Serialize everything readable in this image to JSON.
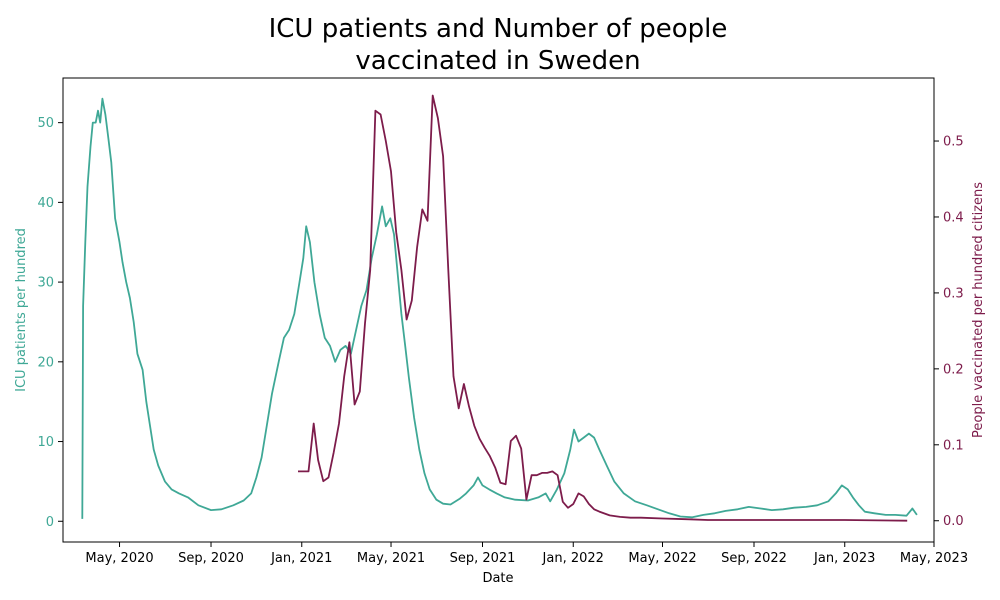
{
  "chart_data": {
    "type": "line",
    "title": [
      "ICU patients and Number of people",
      "vaccinated in Sweden"
    ],
    "xlabel": "Date",
    "x_range": [
      "2020-02-15",
      "2023-05-01"
    ],
    "x_ticks": [
      {
        "date": "2020-05-01",
        "label": "May, 2020"
      },
      {
        "date": "2020-09-01",
        "label": "Sep, 2020"
      },
      {
        "date": "2021-01-01",
        "label": "Jan, 2021"
      },
      {
        "date": "2021-05-01",
        "label": "May, 2021"
      },
      {
        "date": "2021-09-01",
        "label": "Sep, 2021"
      },
      {
        "date": "2022-01-01",
        "label": "Jan, 2022"
      },
      {
        "date": "2022-05-01",
        "label": "May, 2022"
      },
      {
        "date": "2022-09-01",
        "label": "Sep, 2022"
      },
      {
        "date": "2023-01-01",
        "label": "Jan, 2023"
      },
      {
        "date": "2023-05-01",
        "label": "May, 2023"
      }
    ],
    "left_axis": {
      "label": "ICU patients per hundred",
      "color": "#3fa896",
      "ylim": [
        -2.6,
        55.6
      ],
      "ticks": [
        0,
        10,
        20,
        30,
        40,
        50
      ]
    },
    "right_axis": {
      "label": "People vaccinated per hundred citizens",
      "color": "#7d1c4b",
      "ylim": [
        -0.028,
        0.583
      ],
      "ticks": [
        0.0,
        0.1,
        0.2,
        0.3,
        0.4,
        0.5
      ]
    },
    "series": [
      {
        "axis": "left",
        "color": "#3fa896",
        "points": [
          [
            "2020-03-12",
            0.3
          ],
          [
            "2020-03-13",
            27
          ],
          [
            "2020-03-16",
            35
          ],
          [
            "2020-03-19",
            42
          ],
          [
            "2020-03-23",
            47
          ],
          [
            "2020-03-26",
            50
          ],
          [
            "2020-03-30",
            50
          ],
          [
            "2020-04-02",
            51.5
          ],
          [
            "2020-04-05",
            50
          ],
          [
            "2020-04-08",
            53
          ],
          [
            "2020-04-12",
            51
          ],
          [
            "2020-04-16",
            48
          ],
          [
            "2020-04-20",
            45
          ],
          [
            "2020-04-25",
            38
          ],
          [
            "2020-05-01",
            35
          ],
          [
            "2020-05-05",
            32.5
          ],
          [
            "2020-05-10",
            30
          ],
          [
            "2020-05-15",
            28
          ],
          [
            "2020-05-20",
            25
          ],
          [
            "2020-05-25",
            21
          ],
          [
            "2020-06-01",
            19
          ],
          [
            "2020-06-06",
            15
          ],
          [
            "2020-06-11",
            12
          ],
          [
            "2020-06-16",
            9
          ],
          [
            "2020-06-22",
            7
          ],
          [
            "2020-07-01",
            5
          ],
          [
            "2020-07-10",
            4
          ],
          [
            "2020-07-20",
            3.5
          ],
          [
            "2020-08-01",
            3
          ],
          [
            "2020-08-15",
            2
          ],
          [
            "2020-09-01",
            1.4
          ],
          [
            "2020-09-15",
            1.5
          ],
          [
            "2020-10-01",
            2
          ],
          [
            "2020-10-15",
            2.6
          ],
          [
            "2020-10-25",
            3.5
          ],
          [
            "2020-11-01",
            5.5
          ],
          [
            "2020-11-08",
            8
          ],
          [
            "2020-11-15",
            12
          ],
          [
            "2020-11-22",
            16
          ],
          [
            "2020-12-01",
            20
          ],
          [
            "2020-12-08",
            23
          ],
          [
            "2020-12-15",
            24
          ],
          [
            "2020-12-22",
            26
          ],
          [
            "2020-12-29",
            30
          ],
          [
            "2021-01-03",
            33
          ],
          [
            "2021-01-07",
            37
          ],
          [
            "2021-01-12",
            35
          ],
          [
            "2021-01-18",
            30
          ],
          [
            "2021-01-25",
            26
          ],
          [
            "2021-02-01",
            23
          ],
          [
            "2021-02-08",
            22
          ],
          [
            "2021-02-15",
            20
          ],
          [
            "2021-02-22",
            21.5
          ],
          [
            "2021-03-01",
            22
          ],
          [
            "2021-03-08",
            21
          ],
          [
            "2021-03-15",
            24
          ],
          [
            "2021-03-22",
            27
          ],
          [
            "2021-03-29",
            29
          ],
          [
            "2021-04-05",
            33
          ],
          [
            "2021-04-12",
            36
          ],
          [
            "2021-04-19",
            39.5
          ],
          [
            "2021-04-24",
            37
          ],
          [
            "2021-04-30",
            38
          ],
          [
            "2021-05-05",
            36
          ],
          [
            "2021-05-10",
            31
          ],
          [
            "2021-05-15",
            26
          ],
          [
            "2021-05-20",
            22
          ],
          [
            "2021-05-25",
            18
          ],
          [
            "2021-06-01",
            13
          ],
          [
            "2021-06-08",
            9
          ],
          [
            "2021-06-15",
            6
          ],
          [
            "2021-06-22",
            4
          ],
          [
            "2021-07-01",
            2.7
          ],
          [
            "2021-07-10",
            2.2
          ],
          [
            "2021-07-20",
            2.1
          ],
          [
            "2021-08-01",
            2.8
          ],
          [
            "2021-08-10",
            3.5
          ],
          [
            "2021-08-20",
            4.5
          ],
          [
            "2021-08-26",
            5.5
          ],
          [
            "2021-09-01",
            4.5
          ],
          [
            "2021-09-10",
            4
          ],
          [
            "2021-09-20",
            3.5
          ],
          [
            "2021-10-01",
            3
          ],
          [
            "2021-10-15",
            2.7
          ],
          [
            "2021-11-01",
            2.6
          ],
          [
            "2021-11-15",
            3
          ],
          [
            "2021-11-25",
            3.5
          ],
          [
            "2021-12-01",
            2.5
          ],
          [
            "2021-12-10",
            4
          ],
          [
            "2021-12-20",
            6
          ],
          [
            "2021-12-28",
            9
          ],
          [
            "2022-01-02",
            11.5
          ],
          [
            "2022-01-08",
            10
          ],
          [
            "2022-01-15",
            10.5
          ],
          [
            "2022-01-22",
            11
          ],
          [
            "2022-01-29",
            10.5
          ],
          [
            "2022-02-05",
            9
          ],
          [
            "2022-02-15",
            7
          ],
          [
            "2022-02-25",
            5
          ],
          [
            "2022-03-10",
            3.5
          ],
          [
            "2022-03-25",
            2.5
          ],
          [
            "2022-04-10",
            2
          ],
          [
            "2022-04-25",
            1.5
          ],
          [
            "2022-05-10",
            1
          ],
          [
            "2022-05-25",
            0.6
          ],
          [
            "2022-06-10",
            0.5
          ],
          [
            "2022-06-25",
            0.8
          ],
          [
            "2022-07-10",
            1
          ],
          [
            "2022-07-25",
            1.3
          ],
          [
            "2022-08-10",
            1.5
          ],
          [
            "2022-08-25",
            1.8
          ],
          [
            "2022-09-10",
            1.6
          ],
          [
            "2022-09-25",
            1.4
          ],
          [
            "2022-10-10",
            1.5
          ],
          [
            "2022-10-25",
            1.7
          ],
          [
            "2022-11-10",
            1.8
          ],
          [
            "2022-11-25",
            2
          ],
          [
            "2022-12-10",
            2.5
          ],
          [
            "2022-12-20",
            3.5
          ],
          [
            "2022-12-28",
            4.5
          ],
          [
            "2023-01-05",
            4
          ],
          [
            "2023-01-12",
            3
          ],
          [
            "2023-01-20",
            2
          ],
          [
            "2023-01-28",
            1.2
          ],
          [
            "2023-02-10",
            1
          ],
          [
            "2023-02-25",
            0.8
          ],
          [
            "2023-03-10",
            0.8
          ],
          [
            "2023-03-25",
            0.7
          ],
          [
            "2023-04-02",
            1.6
          ],
          [
            "2023-04-08",
            0.8
          ]
        ]
      },
      {
        "axis": "right",
        "color": "#7d1c4b",
        "points": [
          [
            "2020-12-27",
            0.065
          ],
          [
            "2021-01-10",
            0.065
          ],
          [
            "2021-01-17",
            0.128
          ],
          [
            "2021-01-23",
            0.08
          ],
          [
            "2021-01-30",
            0.052
          ],
          [
            "2021-02-06",
            0.057
          ],
          [
            "2021-02-13",
            0.09
          ],
          [
            "2021-02-20",
            0.128
          ],
          [
            "2021-02-27",
            0.19
          ],
          [
            "2021-03-06",
            0.235
          ],
          [
            "2021-03-13",
            0.153
          ],
          [
            "2021-03-20",
            0.17
          ],
          [
            "2021-03-27",
            0.26
          ],
          [
            "2021-04-03",
            0.33
          ],
          [
            "2021-04-10",
            0.54
          ],
          [
            "2021-04-17",
            0.535
          ],
          [
            "2021-04-24",
            0.5
          ],
          [
            "2021-05-01",
            0.46
          ],
          [
            "2021-05-08",
            0.38
          ],
          [
            "2021-05-15",
            0.33
          ],
          [
            "2021-05-22",
            0.265
          ],
          [
            "2021-05-29",
            0.29
          ],
          [
            "2021-06-05",
            0.36
          ],
          [
            "2021-06-12",
            0.41
          ],
          [
            "2021-06-19",
            0.395
          ],
          [
            "2021-06-26",
            0.56
          ],
          [
            "2021-07-03",
            0.53
          ],
          [
            "2021-07-10",
            0.48
          ],
          [
            "2021-07-17",
            0.33
          ],
          [
            "2021-07-24",
            0.19
          ],
          [
            "2021-07-31",
            0.148
          ],
          [
            "2021-08-07",
            0.18
          ],
          [
            "2021-08-14",
            0.15
          ],
          [
            "2021-08-21",
            0.125
          ],
          [
            "2021-08-28",
            0.108
          ],
          [
            "2021-09-04",
            0.096
          ],
          [
            "2021-09-11",
            0.085
          ],
          [
            "2021-09-18",
            0.07
          ],
          [
            "2021-09-25",
            0.05
          ],
          [
            "2021-10-02",
            0.048
          ],
          [
            "2021-10-09",
            0.105
          ],
          [
            "2021-10-16",
            0.112
          ],
          [
            "2021-10-23",
            0.095
          ],
          [
            "2021-10-30",
            0.028
          ],
          [
            "2021-11-06",
            0.06
          ],
          [
            "2021-11-13",
            0.06
          ],
          [
            "2021-11-20",
            0.063
          ],
          [
            "2021-11-27",
            0.063
          ],
          [
            "2021-12-04",
            0.065
          ],
          [
            "2021-12-11",
            0.06
          ],
          [
            "2021-12-18",
            0.025
          ],
          [
            "2021-12-25",
            0.017
          ],
          [
            "2022-01-01",
            0.022
          ],
          [
            "2022-01-08",
            0.036
          ],
          [
            "2022-01-15",
            0.032
          ],
          [
            "2022-01-22",
            0.022
          ],
          [
            "2022-01-29",
            0.015
          ],
          [
            "2022-02-05",
            0.012
          ],
          [
            "2022-02-19",
            0.007
          ],
          [
            "2022-03-05",
            0.005
          ],
          [
            "2022-03-19",
            0.004
          ],
          [
            "2022-04-02",
            0.004
          ],
          [
            "2022-05-01",
            0.003
          ],
          [
            "2022-06-01",
            0.002
          ],
          [
            "2022-07-01",
            0.001
          ],
          [
            "2022-09-01",
            0.001
          ],
          [
            "2022-11-01",
            0.001
          ],
          [
            "2023-01-01",
            0.001
          ],
          [
            "2023-03-26",
            0.0
          ]
        ]
      }
    ]
  }
}
